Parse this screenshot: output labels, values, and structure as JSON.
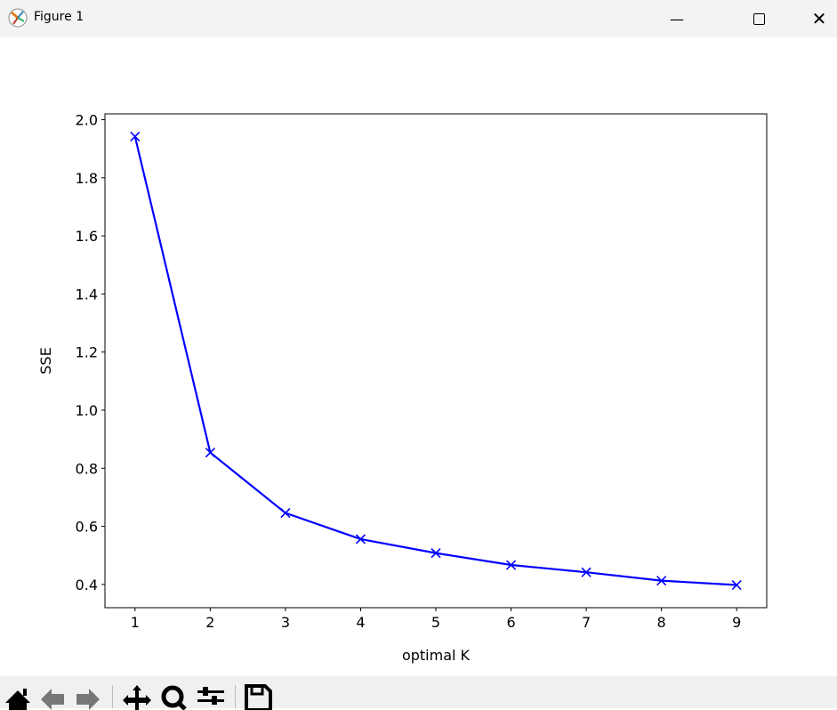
{
  "window": {
    "title": "Figure 1",
    "minimize_icon": "minimize-icon",
    "maximize_icon": "maximize-icon",
    "close_icon": "close-icon"
  },
  "toolbar": {
    "buttons": [
      "home-icon",
      "back-arrow-icon",
      "forward-arrow-icon",
      "pan-icon",
      "zoom-icon",
      "configure-subplots-icon",
      "save-icon"
    ]
  },
  "chart_data": {
    "type": "line",
    "title": "",
    "xlabel": "optimal K",
    "ylabel": "SSE",
    "x": [
      1,
      2,
      3,
      4,
      5,
      6,
      7,
      8,
      9
    ],
    "series": [
      {
        "values": [
          1.942,
          0.854,
          0.646,
          0.556,
          0.508,
          0.467,
          0.442,
          0.413,
          0.398
        ],
        "color": "#0000ff",
        "marker": "x"
      }
    ],
    "xlim": [
      0.6,
      9.4
    ],
    "ylim": [
      0.32,
      2.02
    ],
    "xticks": [
      "1",
      "2",
      "3",
      "4",
      "5",
      "6",
      "7",
      "8",
      "9"
    ],
    "yticks": [
      "0.4",
      "0.6",
      "0.8",
      "1.0",
      "1.2",
      "1.4",
      "1.6",
      "1.8",
      "2.0"
    ],
    "grid": false
  }
}
